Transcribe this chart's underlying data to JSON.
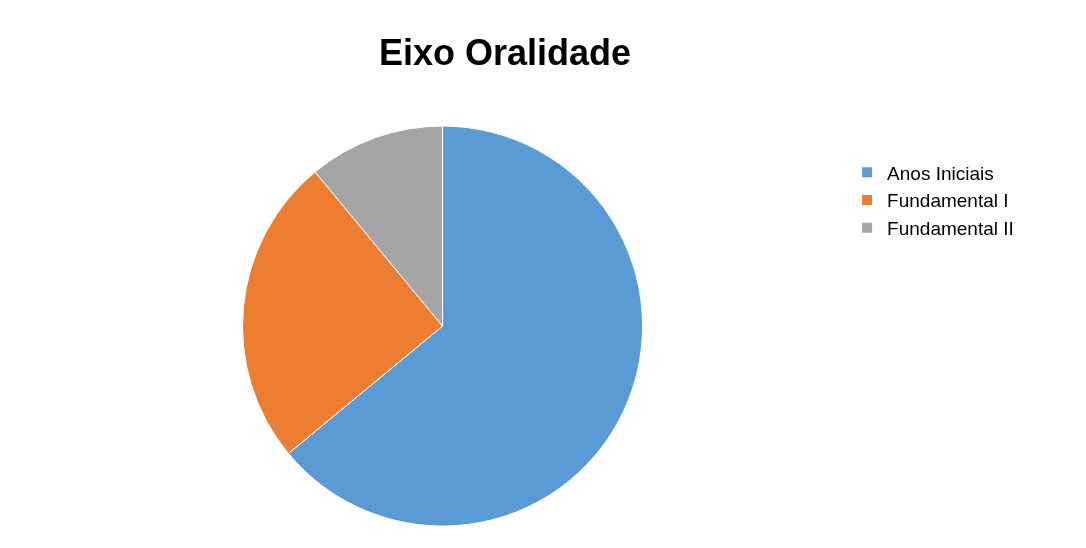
{
  "chart_data": {
    "type": "pie",
    "title": "Eixo Oralidade",
    "categories": [
      "Anos Iniciais",
      "Fundamental I",
      "Fundamental II"
    ],
    "values": [
      64,
      25,
      11
    ],
    "colors": [
      "#5b9bd5",
      "#ed7d31",
      "#a5a5a5"
    ],
    "legend": "right"
  }
}
